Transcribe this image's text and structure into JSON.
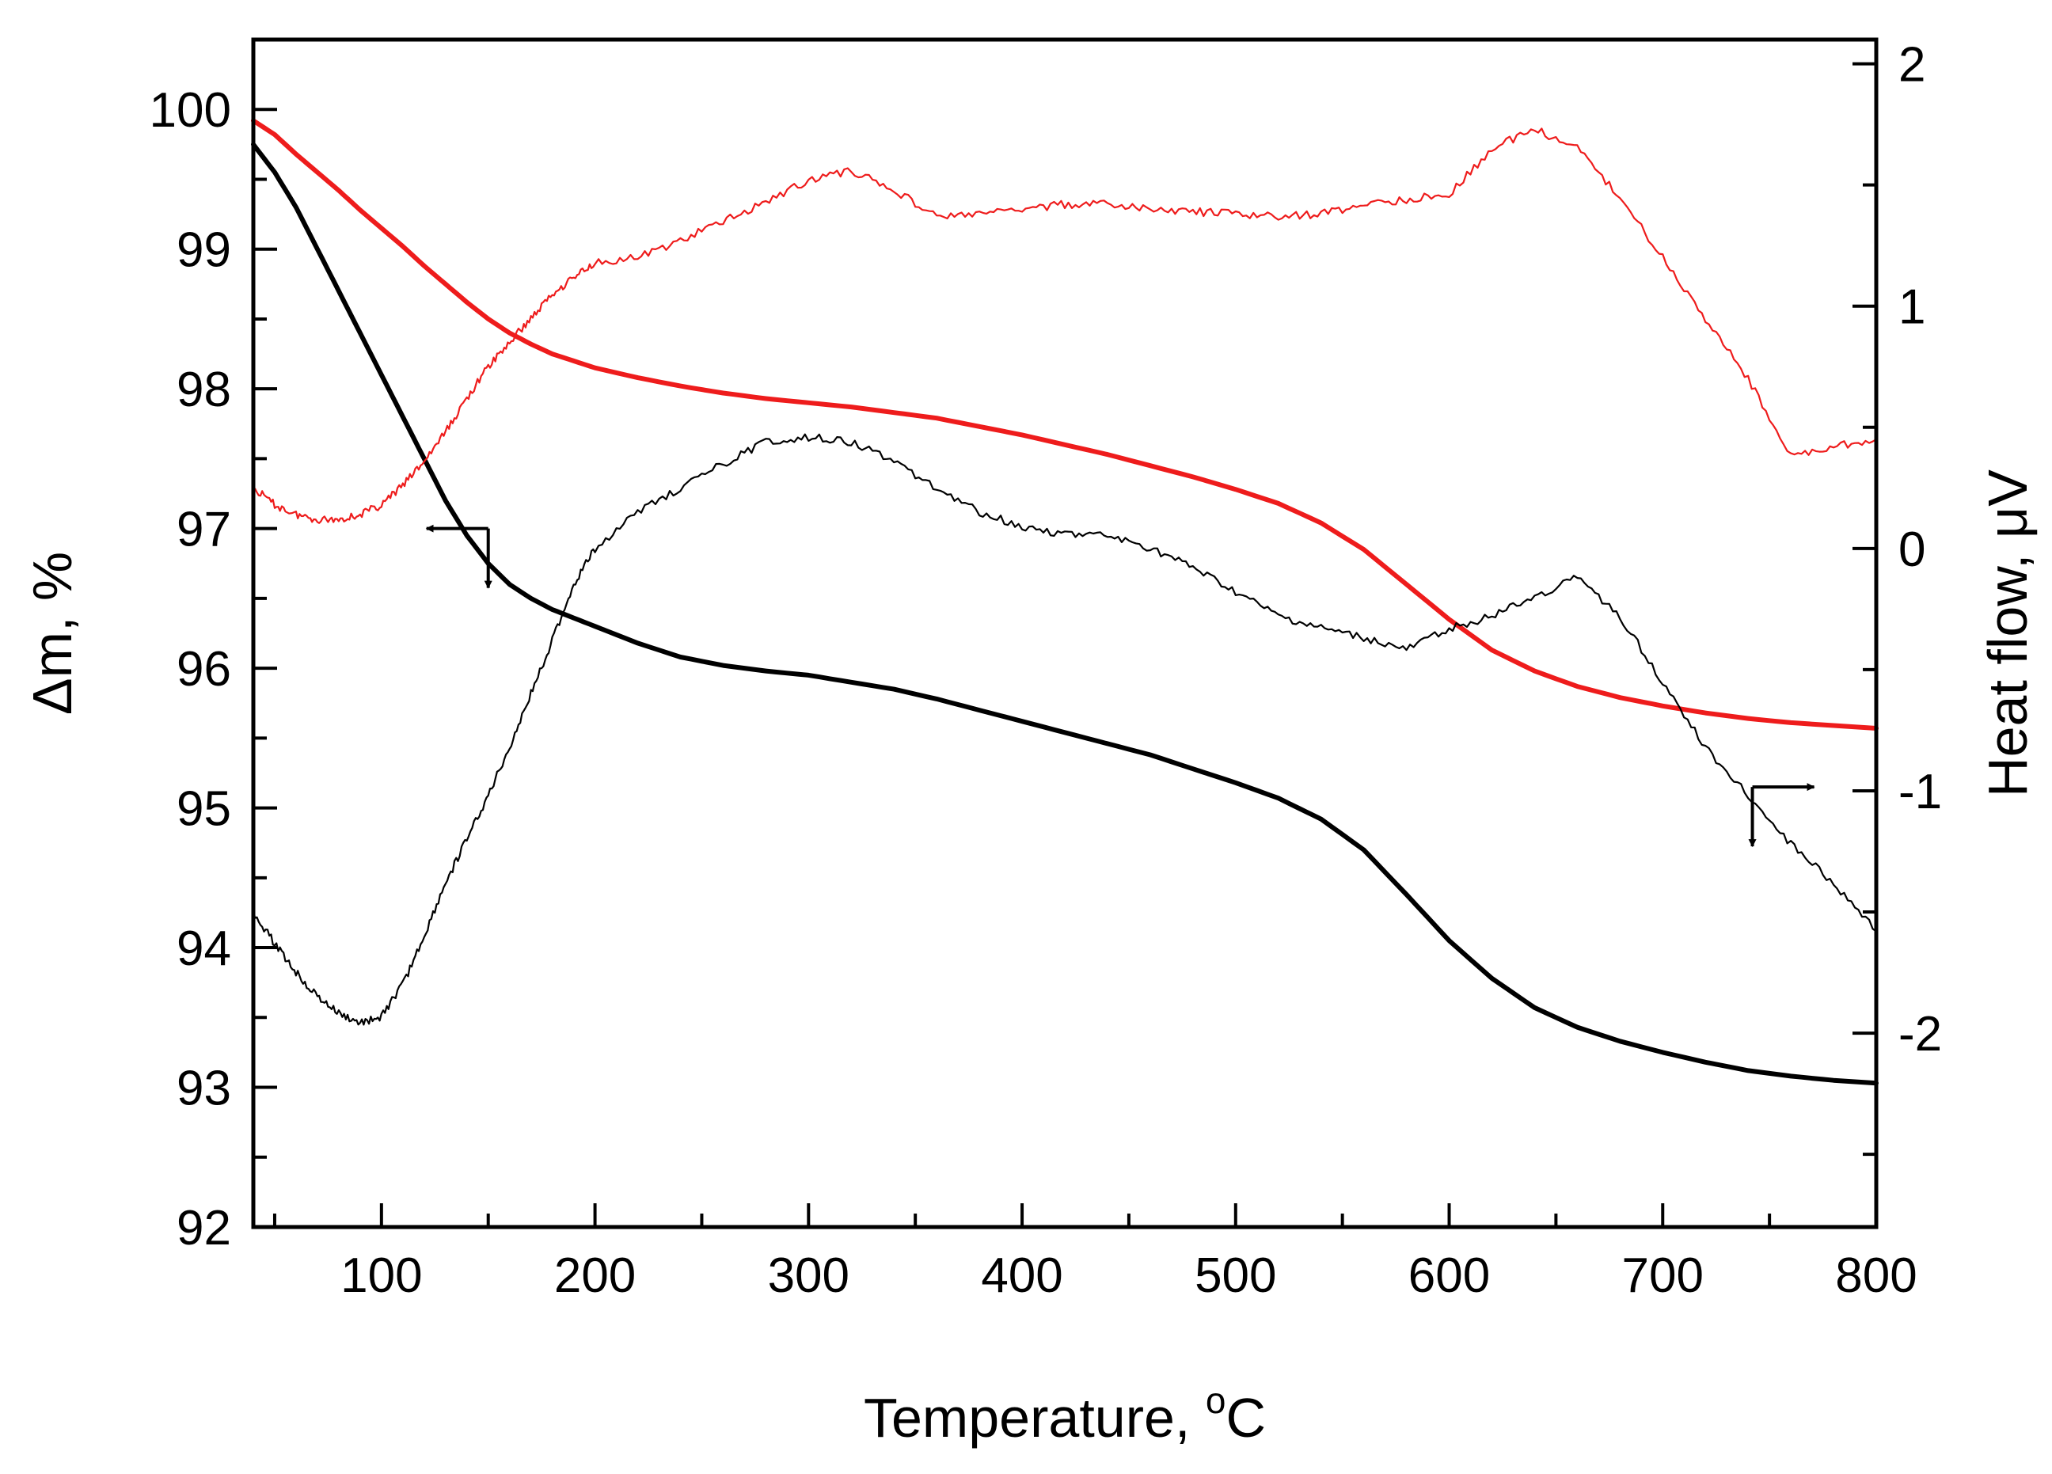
{
  "chart_data": {
    "type": "line",
    "x_axis": {
      "label": "Temperature, °C",
      "label_main": "Temperature, ",
      "label_degree": "o",
      "label_unit": "C",
      "min": 40,
      "max": 800,
      "major_ticks": [
        100,
        200,
        300,
        400,
        500,
        600,
        700,
        800
      ],
      "tick_labels": [
        "100",
        "200",
        "300",
        "400",
        "500",
        "600",
        "700",
        "800"
      ],
      "minor_step": 50
    },
    "y_left": {
      "label": "Δm, %",
      "min": 92,
      "max": 100.5,
      "major_ticks": [
        92,
        93,
        94,
        95,
        96,
        97,
        98,
        99,
        100
      ],
      "tick_labels": [
        "92",
        "93",
        "94",
        "95",
        "96",
        "97",
        "98",
        "99",
        "100"
      ],
      "minor_step": 0.5
    },
    "y_right": {
      "label": "Heat flow, μV",
      "label_main": "Heat flow, ",
      "label_mu": "μ",
      "label_unit": "V",
      "min": -2.8,
      "max": 2.1,
      "major_ticks": [
        -2,
        -1,
        0,
        1,
        2
      ],
      "tick_labels": [
        "-2",
        "-1",
        "0",
        "1",
        "2"
      ],
      "minor_step": 0.5
    },
    "series": [
      {
        "name": "TG (black)",
        "axis": "left",
        "color": "#000000",
        "style": "thick",
        "x": [
          40,
          50,
          60,
          70,
          80,
          90,
          100,
          110,
          120,
          130,
          140,
          150,
          160,
          170,
          180,
          190,
          200,
          220,
          240,
          260,
          280,
          300,
          320,
          340,
          360,
          380,
          400,
          420,
          440,
          460,
          480,
          500,
          520,
          540,
          560,
          580,
          600,
          620,
          640,
          660,
          680,
          700,
          720,
          740,
          760,
          780,
          800
        ],
        "values": [
          99.75,
          99.55,
          99.3,
          99.0,
          98.7,
          98.4,
          98.1,
          97.8,
          97.5,
          97.2,
          96.95,
          96.75,
          96.6,
          96.5,
          96.42,
          96.36,
          96.3,
          96.18,
          96.08,
          96.02,
          95.98,
          95.95,
          95.9,
          95.85,
          95.78,
          95.7,
          95.62,
          95.54,
          95.46,
          95.38,
          95.28,
          95.18,
          95.07,
          94.92,
          94.7,
          94.38,
          94.05,
          93.78,
          93.57,
          93.43,
          93.33,
          93.25,
          93.18,
          93.12,
          93.08,
          93.05,
          93.03
        ]
      },
      {
        "name": "TG (red)",
        "axis": "left",
        "color": "#ee1c1c",
        "style": "thick",
        "x": [
          40,
          50,
          60,
          70,
          80,
          90,
          100,
          110,
          120,
          130,
          140,
          150,
          160,
          170,
          180,
          190,
          200,
          220,
          240,
          260,
          280,
          300,
          320,
          340,
          360,
          380,
          400,
          420,
          440,
          460,
          480,
          500,
          520,
          540,
          560,
          580,
          600,
          620,
          640,
          660,
          680,
          700,
          720,
          740,
          760,
          780,
          800
        ],
        "values": [
          99.92,
          99.82,
          99.68,
          99.55,
          99.42,
          99.28,
          99.15,
          99.02,
          98.88,
          98.75,
          98.62,
          98.5,
          98.4,
          98.32,
          98.25,
          98.2,
          98.15,
          98.08,
          98.02,
          97.97,
          97.93,
          97.9,
          97.87,
          97.83,
          97.79,
          97.73,
          97.67,
          97.6,
          97.53,
          97.45,
          97.37,
          97.28,
          97.18,
          97.04,
          96.85,
          96.6,
          96.35,
          96.13,
          95.98,
          95.87,
          95.79,
          95.73,
          95.68,
          95.64,
          95.61,
          95.59,
          95.57
        ]
      },
      {
        "name": "Heat flow (black)",
        "axis": "right",
        "color": "#000000",
        "style": "thin",
        "x": [
          40,
          50,
          60,
          70,
          80,
          90,
          100,
          110,
          120,
          130,
          140,
          150,
          160,
          170,
          180,
          190,
          200,
          220,
          240,
          260,
          280,
          300,
          320,
          340,
          360,
          380,
          400,
          420,
          440,
          460,
          480,
          500,
          520,
          540,
          560,
          580,
          600,
          620,
          640,
          660,
          680,
          700,
          720,
          740,
          760,
          780,
          800
        ],
        "values": [
          -1.5,
          -1.63,
          -1.75,
          -1.85,
          -1.92,
          -1.96,
          -1.93,
          -1.8,
          -1.6,
          -1.38,
          -1.2,
          -1.02,
          -0.82,
          -0.6,
          -0.38,
          -0.15,
          0.0,
          0.15,
          0.25,
          0.35,
          0.44,
          0.46,
          0.44,
          0.36,
          0.25,
          0.15,
          0.09,
          0.06,
          0.05,
          0.0,
          -0.08,
          -0.18,
          -0.28,
          -0.33,
          -0.37,
          -0.42,
          -0.33,
          -0.28,
          -0.2,
          -0.12,
          -0.28,
          -0.55,
          -0.82,
          -1.02,
          -1.22,
          -1.38,
          -1.58
        ]
      },
      {
        "name": "Heat flow (red)",
        "axis": "right",
        "color": "#ee1c1c",
        "style": "thin",
        "x": [
          40,
          50,
          60,
          70,
          80,
          90,
          100,
          110,
          120,
          130,
          140,
          150,
          160,
          170,
          180,
          190,
          200,
          220,
          240,
          260,
          280,
          300,
          320,
          340,
          360,
          380,
          400,
          420,
          440,
          460,
          480,
          500,
          520,
          540,
          560,
          580,
          600,
          620,
          640,
          660,
          680,
          700,
          720,
          740,
          760,
          780,
          800
        ],
        "values": [
          0.25,
          0.18,
          0.14,
          0.12,
          0.12,
          0.14,
          0.18,
          0.26,
          0.36,
          0.48,
          0.62,
          0.75,
          0.85,
          0.95,
          1.05,
          1.12,
          1.18,
          1.2,
          1.27,
          1.35,
          1.43,
          1.52,
          1.56,
          1.48,
          1.37,
          1.38,
          1.4,
          1.42,
          1.42,
          1.4,
          1.39,
          1.38,
          1.37,
          1.38,
          1.42,
          1.44,
          1.46,
          1.65,
          1.73,
          1.65,
          1.45,
          1.2,
          0.95,
          0.7,
          0.38,
          0.42,
          0.45
        ]
      }
    ],
    "annotations": [
      {
        "type": "arrow-pointer",
        "points_to_axis": "left",
        "x": 150,
        "y_left": 97.0
      },
      {
        "type": "arrow-pointer",
        "points_to_axis": "right",
        "x": 742,
        "y_left": 95.15
      }
    ],
    "grid": false,
    "legend": "none"
  }
}
